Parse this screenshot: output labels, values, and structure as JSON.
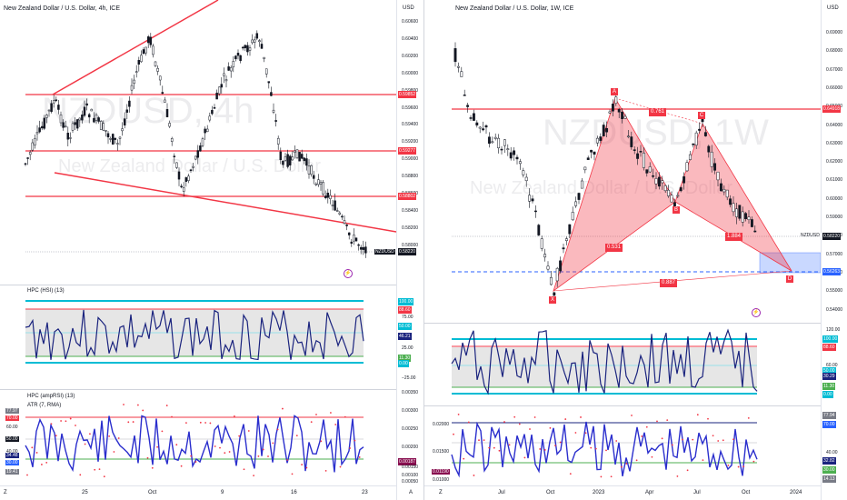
{
  "left": {
    "title": "New Zealand Dollar / U.S. Dollar, 4h, ICE",
    "currency": "USD",
    "watermark_symbol": "NZDUSD, 4h",
    "watermark_name": "New Zealand Dollar / U.S. Dollar",
    "price_ticks": [
      "0.60600",
      "0.60400",
      "0.60200",
      "0.60000",
      "0.59800",
      "0.59600",
      "0.59400",
      "0.59200",
      "0.59000",
      "0.58800",
      "0.58600",
      "0.58400",
      "0.58200",
      "0.58000"
    ],
    "level_tags": [
      "0.59852",
      "0.59277",
      "0.58802"
    ],
    "symbol_label": "NZDUSD",
    "last_price": "0.58220",
    "hpc_title": "HPC (HSI) (13)",
    "hpc_ticks": [
      "100.00",
      "88.60",
      "75.00",
      "50.00",
      "46.21",
      "25.00",
      "11.30",
      "0.00",
      "−25.00"
    ],
    "amp_title": "HPC (ampRSI) (13)",
    "atr_title": "ATR (7, RMA)",
    "amp_left_tags": [
      "77.97",
      "70.00",
      "60.00",
      "50.00",
      "40.00",
      "34.48",
      "30.00",
      "19.41"
    ],
    "atr_ticks": [
      "0.00350",
      "0.00300",
      "0.00250",
      "0.00200",
      "0.00187",
      "0.00150",
      "0.00100",
      "0.00050"
    ],
    "x_labels": [
      "25",
      "Oct",
      "9",
      "16",
      "23"
    ],
    "corner_left": "Z",
    "corner_right": "A"
  },
  "right": {
    "title": "New Zealand Dollar / U.S. Dollar, 1W, ICE",
    "currency": "USD",
    "watermark_symbol": "NZDUSD, 1W",
    "watermark_name": "New Zealand Dollar / U.S. Dollar",
    "price_ticks": [
      "0.69000",
      "0.68000",
      "0.67000",
      "0.66000",
      "0.65000",
      "0.64000",
      "0.63000",
      "0.62000",
      "0.61000",
      "0.60000",
      "0.59000",
      "0.58000",
      "0.57000",
      "0.56000",
      "0.55000",
      "0.54000"
    ],
    "level_tags": [
      "0.64918",
      "0.56263"
    ],
    "symbol_label": "NZDUSD",
    "last_price": "0.58220",
    "pattern": {
      "X": "X",
      "A": "A",
      "B": "B",
      "C": "C",
      "D": "D"
    },
    "ratios": [
      "0.761",
      "0.531",
      "1.884",
      "0.887"
    ],
    "hpc_ticks": [
      "120.00",
      "100.00",
      "88.60",
      "60.00",
      "50.00",
      "30.29",
      "11.30",
      "0.00"
    ],
    "amp_ticks": [
      "77.94",
      "70.00",
      "40.00",
      "32.82",
      "30.00",
      "14.13"
    ],
    "atr_ticks": [
      "0.02000",
      "0.01500",
      "0.01190",
      "0.01000"
    ],
    "x_labels": [
      "Jul",
      "Oct",
      "2023",
      "Apr",
      "Jul",
      "Oct",
      "2024"
    ],
    "corner_left": "Z",
    "corner_right": "A"
  },
  "colors": {
    "red": "#f23645",
    "cyan": "#00bcd4",
    "navy": "#1a237e",
    "green": "#4caf50",
    "blue_tag": "#2962ff",
    "dark_tag": "#131722",
    "red_tag": "#f23645",
    "green_tag": "#4caf50"
  }
}
